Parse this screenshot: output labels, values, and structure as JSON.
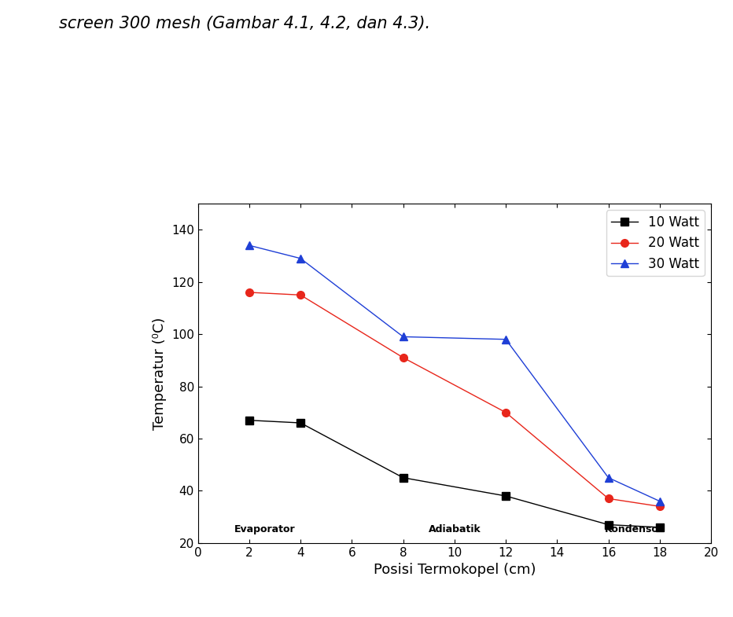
{
  "chart_data": {
    "type": "line",
    "title": "screen 300 mesh (Gambar 4.1, 4.2, dan 4.3).",
    "x_label": "Posisi Termokopel (cm)",
    "y_label": "Temperatur (⁰C)",
    "annotations": [
      "Evaporator",
      "Adiabatik",
      "Kondensor"
    ],
    "x": [
      2,
      4,
      8,
      12,
      16,
      18
    ],
    "series": [
      {
        "name": "10 Watt",
        "color": "#000000",
        "marker": "square",
        "values": [
          67,
          66,
          45,
          38,
          27,
          26
        ]
      },
      {
        "name": "20 Watt",
        "color": "#e8261b",
        "marker": "circle",
        "values": [
          116,
          115,
          91,
          70,
          37,
          34
        ]
      },
      {
        "name": "30 Watt",
        "color": "#1f3fd6",
        "marker": "triangle",
        "values": [
          134,
          129,
          99,
          98,
          45,
          36
        ]
      }
    ],
    "xlim": [
      0,
      20
    ],
    "xticks": [
      0,
      2,
      4,
      6,
      8,
      10,
      12,
      14,
      16,
      18,
      20
    ],
    "ylim": [
      20,
      150
    ],
    "yticks": [
      20,
      40,
      60,
      80,
      100,
      120,
      140
    ],
    "legend": "upper right",
    "grid": false
  }
}
